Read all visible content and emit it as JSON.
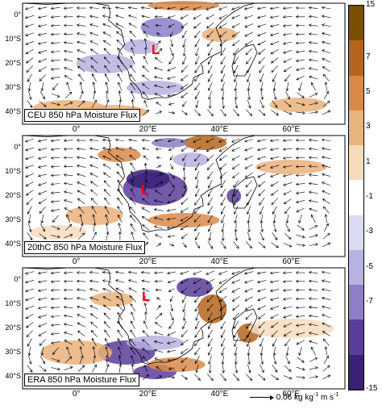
{
  "panels": [
    {
      "label": "CEU 850 hPa Moisture Flux"
    },
    {
      "label": "20thC 850 hPa Moisture Flux"
    },
    {
      "label": "ERA 850 hPa Moisture Flux"
    }
  ],
  "lat_ticks": [
    "0°",
    "10°S",
    "20°S",
    "30°S",
    "40°S"
  ],
  "lon_ticks": [
    "0°",
    "20°E",
    "40°E",
    "60°E"
  ],
  "colorbar": {
    "ticks": [
      "15",
      "7",
      "5",
      "3",
      "1",
      "-1",
      "-3",
      "-5",
      "-7",
      "-15"
    ],
    "colors": [
      "#7b4f00",
      "#b5651d",
      "#d9894a",
      "#eab27d",
      "#f6dcbd",
      "#ffffff",
      "#dcdaf0",
      "#b8b2e0",
      "#8c7fc7",
      "#5a3d9a",
      "#3b2078"
    ]
  },
  "marker_symbol": "L",
  "marker_color": "#ff0000",
  "reference_vector": {
    "text": "0.06 kg kg",
    "sup1": "-1",
    "mid": " m s",
    "sup2": "-1"
  }
}
